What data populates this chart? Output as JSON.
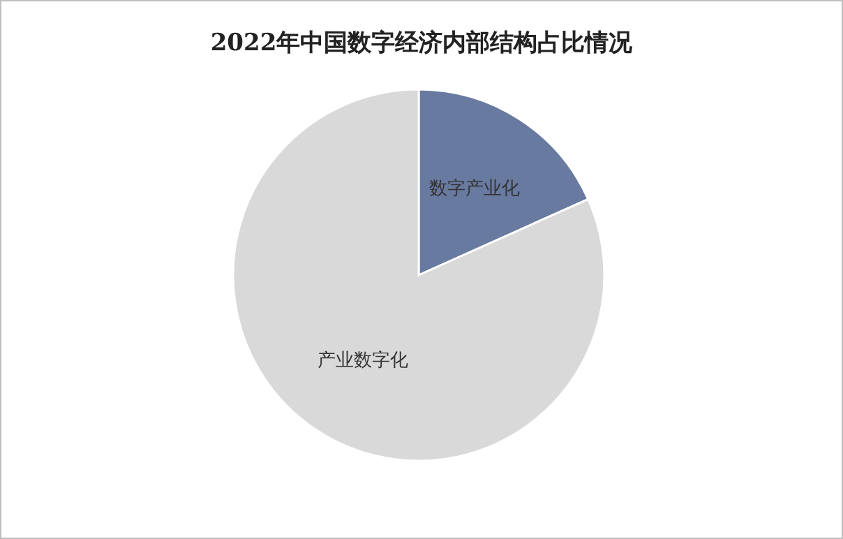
{
  "chart_data": {
    "type": "pie",
    "title": "2022年中国数字经济内部结构占比情况",
    "categories": [
      "数字产业化",
      "产业数字化"
    ],
    "values": [
      18.3,
      81.7
    ],
    "colors": [
      "#687aa0",
      "#d9d9d9"
    ],
    "legend": false
  }
}
